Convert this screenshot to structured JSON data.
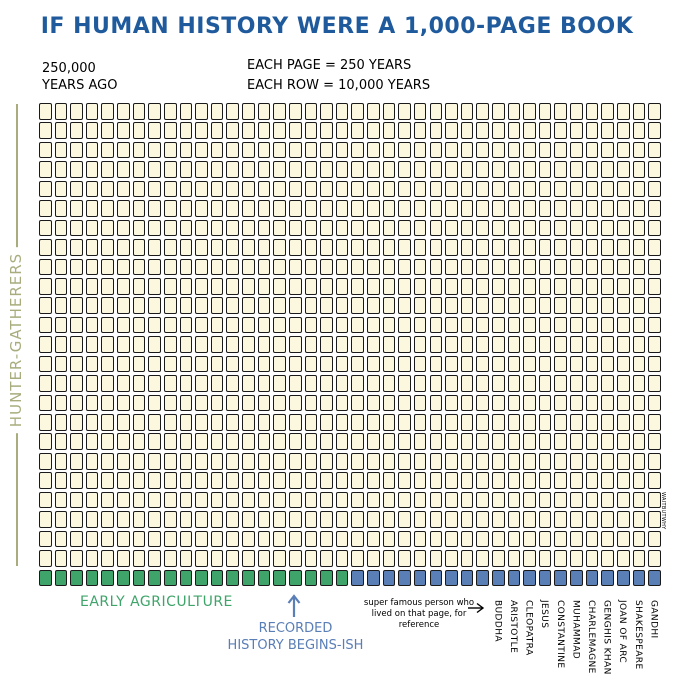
{
  "title": "IF HUMAN HISTORY WERE A 1,000-PAGE BOOK",
  "start": {
    "line1": "250,000",
    "line2": "YEARS AGO"
  },
  "scale": {
    "line1": "EACH PAGE = 250 YEARS",
    "line2": "EACH ROW = 10,000 YEARS"
  },
  "side_label": "HUNTER-GATHERERS",
  "grid": {
    "columns": 40,
    "rows": 25,
    "total_pages": 1000,
    "hunter_gatherer_pages": 960,
    "agriculture_pages": 20,
    "recorded_history_pages": 20
  },
  "agriculture_label": "EARLY AGRICULTURE",
  "recorded_label": {
    "line1": "RECORDED",
    "line2": "HISTORY BEGINS-ISH"
  },
  "reference_note": "super famous person who lived on that page, for reference",
  "people": [
    {
      "name": "BUDDHA",
      "column": 30
    },
    {
      "name": "ARISTOTLE",
      "column": 31
    },
    {
      "name": "CLEOPATRA",
      "column": 32
    },
    {
      "name": "JESUS",
      "column": 33
    },
    {
      "name": "CONSTANTINE",
      "column": 34
    },
    {
      "name": "MUHAMMAD",
      "column": 35
    },
    {
      "name": "CHARLEMAGNE",
      "column": 36
    },
    {
      "name": "GENGHIS KHAN",
      "column": 37
    },
    {
      "name": "JOAN OF ARC",
      "column": 38
    },
    {
      "name": "SHAKESPEARE",
      "column": 39
    },
    {
      "name": "GANDHI",
      "column": 40
    }
  ],
  "signature": "WAITBUTWHY",
  "colors": {
    "title": "#1f5a9c",
    "page_fill": "#fbf8df",
    "page_border": "#1a1a1a",
    "agriculture": "#3fa46a",
    "recorded": "#5a7eb6",
    "side_label": "#a9ad7e"
  }
}
